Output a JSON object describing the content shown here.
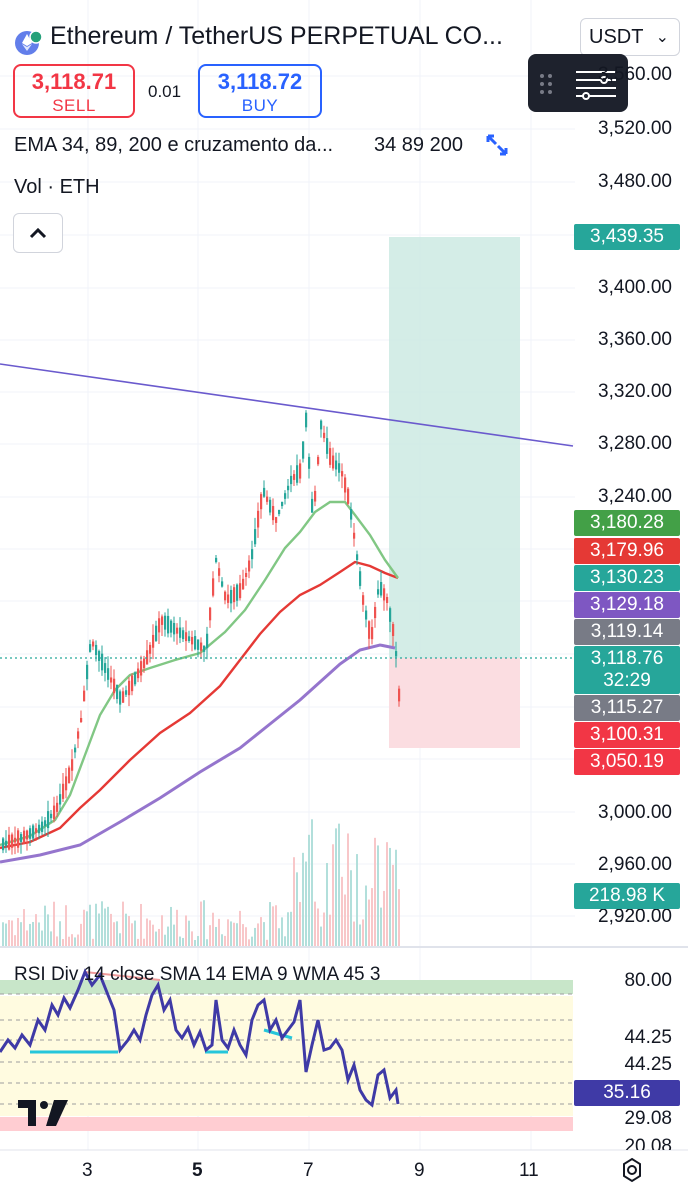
{
  "header": {
    "symbol_title": "Ethereum / TetherUS PERPETUAL CO...",
    "currency": "USDT",
    "sell_price": "3,118.71",
    "sell_label": "SELL",
    "spread": "0.01",
    "buy_price": "3,118.72",
    "buy_label": "BUY"
  },
  "indicators": {
    "ema_label": "EMA 34, 89, 200 e cruzamento da...",
    "ema_values": "34 89 200",
    "vol_label": "Vol · ETH"
  },
  "price_axis": {
    "labels": [
      "3,560.00",
      "3,520.00",
      "3,480.00",
      "3,400.00",
      "3,360.00",
      "3,320.00",
      "3,280.00",
      "3,240.00",
      "3,000.00",
      "2,960.00",
      "2,920.00"
    ],
    "tags": {
      "target": "3,439.35",
      "ema34": "3,180.28",
      "ema89": "3,179.96",
      "teal": "3,130.23",
      "ema200": "3,129.18",
      "gray1": "3,119.14",
      "last": "3,118.76",
      "countdown": "32:29",
      "gray2": "3,115.27",
      "red1": "3,100.31",
      "stop": "3,050.19",
      "volume": "218.98 K"
    }
  },
  "rsi": {
    "title": "RSI Div 14 close SMA 14 EMA 9 WMA 45 3",
    "labels": [
      "80.00",
      "44.25",
      "44.25",
      "29.08",
      "20.08"
    ],
    "current": "35.16"
  },
  "time_axis": {
    "labels": [
      "3",
      "5",
      "7",
      "9",
      "11"
    ]
  },
  "colors": {
    "sell": "#f23645",
    "buy": "#2962ff",
    "ema34": "#81c784",
    "ema89": "#e53935",
    "ema200": "#9575cd",
    "rsi_line": "#3f3aa6",
    "target_zone": "#cdeae3",
    "stop_zone": "#fbdde1"
  },
  "chart_data": {
    "type": "candlestick",
    "currency": "USDT",
    "last_price": 3118.76,
    "entry": 3118.76,
    "target": 3439.35,
    "stop": 3050.19,
    "ema": {
      "34": 3180.28,
      "89": 3179.96,
      "200": 3129.18
    },
    "rsi_current": 35.16,
    "volume_current_k": 218.98
  }
}
